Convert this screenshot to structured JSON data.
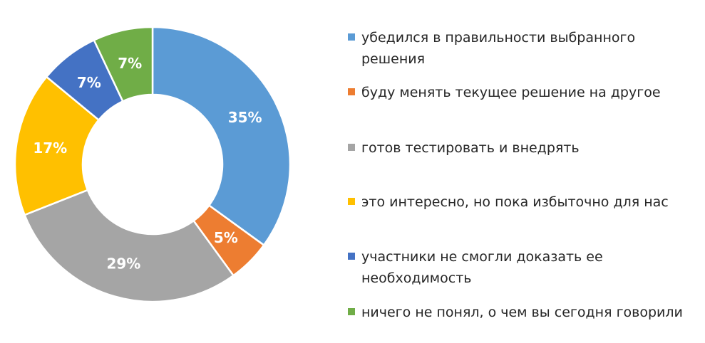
{
  "chart_data": {
    "type": "pie",
    "donut": true,
    "legend_position": "right",
    "categories": [
      "убедился в правильности выбранного решения",
      "буду менять текущее решение на другое",
      "готов тестировать и внедрять",
      "это интересно, но пока избыточно для нас",
      "участники не смогли доказать ее необходимость",
      "ничего не понял, о чем вы сегодня говорили"
    ],
    "values": [
      35,
      5,
      29,
      17,
      7,
      7
    ],
    "labels": [
      "35%",
      "5%",
      "29%",
      "17%",
      "7%",
      "7%"
    ],
    "colors": [
      "#5b9bd5",
      "#ed7d31",
      "#a5a5a5",
      "#ffc000",
      "#4472c4",
      "#70ad47"
    ]
  }
}
